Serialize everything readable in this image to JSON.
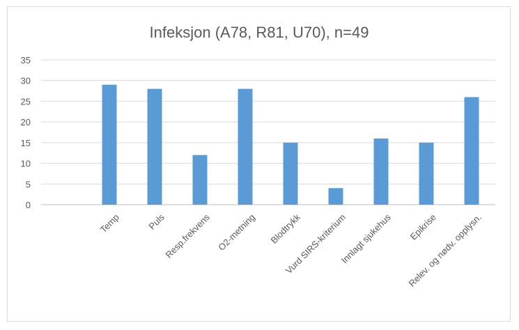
{
  "chart_data": {
    "type": "bar",
    "title": "Infeksjon (A78, R81, U70), n=49",
    "xlabel": "",
    "ylabel": "",
    "categories": [
      "Temp",
      "Puls",
      "Resp.frekvens",
      "O2-metning",
      "Blodtrykk",
      "Vurd SIRS-kriterium",
      "Innlagt sjukehus",
      "Epikrise",
      "Relev. og nødv. opplysn."
    ],
    "values": [
      29,
      28,
      12,
      28,
      15,
      4,
      16,
      15,
      26
    ],
    "ylim": [
      0,
      35
    ],
    "yticks": [
      0,
      5,
      10,
      15,
      20,
      25,
      30,
      35
    ],
    "grid": true,
    "legend": "none",
    "bar_color": "#5b9bd5"
  }
}
